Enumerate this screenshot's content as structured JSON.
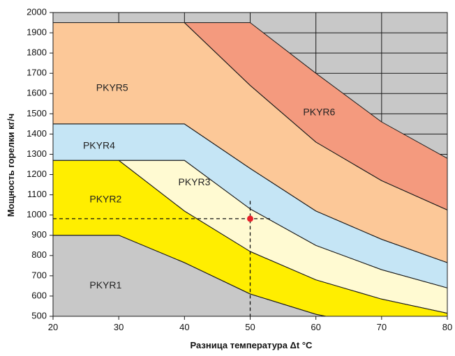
{
  "chart_data": {
    "type": "area",
    "xlabel": "Разница температура Δt °C",
    "ylabel": "Мощность горелки кг/ч",
    "xlim": [
      20,
      80
    ],
    "ylim": [
      500,
      2000
    ],
    "x_ticks": [
      "20",
      "30",
      "40",
      "50",
      "60",
      "70",
      "80"
    ],
    "y_ticks": [
      "500",
      "600",
      "700",
      "800",
      "900",
      "1000",
      "1100",
      "1200",
      "1300",
      "1400",
      "1500",
      "1600",
      "1700",
      "1800",
      "1900",
      "2000"
    ],
    "grid": true,
    "background_color": "#c8c8c8",
    "series": [
      {
        "name": "PKYR1",
        "color": "#c8c8c8",
        "label_at": [
          28,
          650
        ],
        "points": [
          [
            20,
            900
          ],
          [
            30,
            900
          ],
          [
            40,
            765
          ],
          [
            50,
            610
          ],
          [
            60,
            510
          ],
          [
            61.5,
            500
          ],
          [
            20,
            500
          ]
        ]
      },
      {
        "name": "PKYR2",
        "color": "#ffee00",
        "label_at": [
          28,
          1075
        ],
        "points": [
          [
            20,
            1270
          ],
          [
            30,
            1270
          ],
          [
            40,
            1020
          ],
          [
            50,
            820
          ],
          [
            60,
            680
          ],
          [
            70,
            585
          ],
          [
            80,
            515
          ],
          [
            80,
            500
          ],
          [
            61.5,
            500
          ],
          [
            60,
            510
          ],
          [
            50,
            610
          ],
          [
            40,
            765
          ],
          [
            30,
            900
          ],
          [
            20,
            900
          ]
        ]
      },
      {
        "name": "PKYR3",
        "color": "#fffad2",
        "label_at": [
          41.5,
          1160
        ],
        "points": [
          [
            30,
            1270
          ],
          [
            40,
            1270
          ],
          [
            50,
            1030
          ],
          [
            60,
            850
          ],
          [
            70,
            730
          ],
          [
            80,
            640
          ],
          [
            80,
            515
          ],
          [
            70,
            585
          ],
          [
            60,
            680
          ],
          [
            50,
            820
          ],
          [
            40,
            1020
          ]
        ]
      },
      {
        "name": "PKYR4",
        "color": "#c5e5f5",
        "label_at": [
          27,
          1340
        ],
        "points": [
          [
            20,
            1450
          ],
          [
            40,
            1450
          ],
          [
            50,
            1230
          ],
          [
            60,
            1020
          ],
          [
            70,
            880
          ],
          [
            80,
            765
          ],
          [
            80,
            640
          ],
          [
            70,
            730
          ],
          [
            60,
            850
          ],
          [
            50,
            1030
          ],
          [
            40,
            1270
          ],
          [
            20,
            1270
          ]
        ]
      },
      {
        "name": "PKYR5",
        "color": "#fcc898",
        "label_at": [
          29,
          1625
        ],
        "points": [
          [
            20,
            1950
          ],
          [
            40,
            1950
          ],
          [
            50,
            1640
          ],
          [
            60,
            1360
          ],
          [
            70,
            1170
          ],
          [
            80,
            1025
          ],
          [
            80,
            765
          ],
          [
            70,
            880
          ],
          [
            60,
            1020
          ],
          [
            50,
            1230
          ],
          [
            40,
            1450
          ],
          [
            20,
            1450
          ]
        ]
      },
      {
        "name": "PKYR6",
        "color": "#f49a7e",
        "label_at": [
          60.5,
          1505
        ],
        "points": [
          [
            40,
            1950
          ],
          [
            50,
            1950
          ],
          [
            60,
            1700
          ],
          [
            70,
            1460
          ],
          [
            80,
            1280
          ],
          [
            80,
            1025
          ],
          [
            70,
            1170
          ],
          [
            60,
            1360
          ],
          [
            50,
            1640
          ]
        ]
      }
    ],
    "annotation": {
      "point": [
        50,
        982
      ],
      "point_color": "#e8202a",
      "h_guide": [
        20,
        53
      ],
      "v_guide": [
        1070,
        500
      ]
    }
  }
}
